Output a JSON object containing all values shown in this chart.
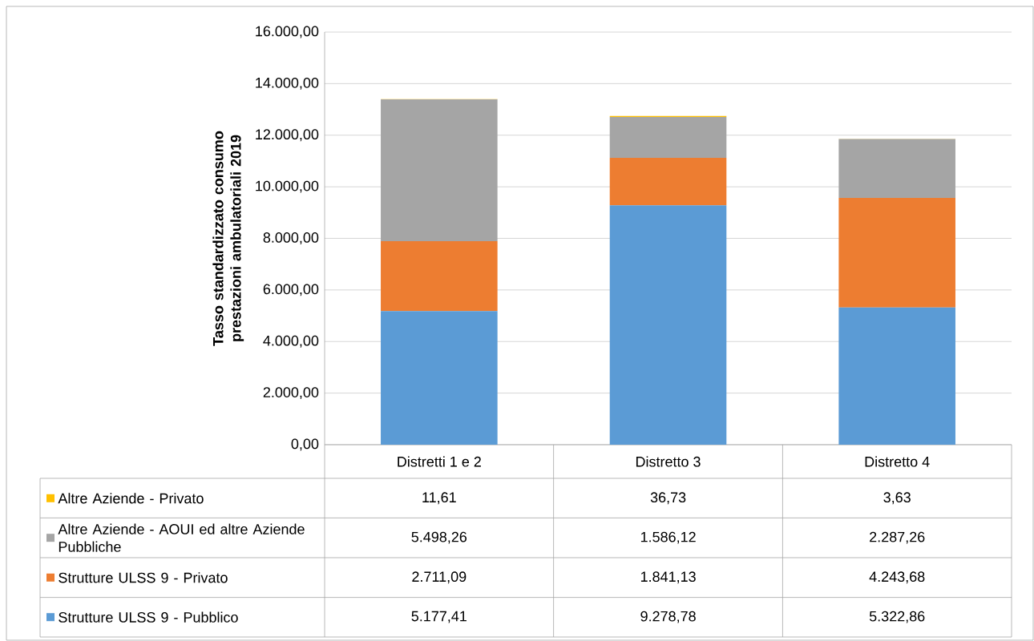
{
  "chart_data": {
    "type": "bar",
    "stacked": true,
    "ylabel": "Tasso standardizzato consumo prestazioni ambulatoriali 2019",
    "categories": [
      "Distretti 1 e 2",
      "Distretto 3",
      "Distretto 4"
    ],
    "series": [
      {
        "name": "Strutture ULSS 9 - Pubblico",
        "color": "#5b9bd5",
        "values": [
          5177.41,
          9278.78,
          5322.86
        ],
        "value_labels": [
          "5.177,41",
          "9.278,78",
          "5.322,86"
        ]
      },
      {
        "name": "Strutture ULSS 9 - Privato",
        "color": "#ed7d31",
        "values": [
          2711.09,
          1841.13,
          4243.68
        ],
        "value_labels": [
          "2.711,09",
          "1.841,13",
          "4.243,68"
        ]
      },
      {
        "name": "Altre Aziende - AOUI ed altre Aziende Pubbliche",
        "color": "#a5a5a5",
        "values": [
          5498.26,
          1586.12,
          2287.26
        ],
        "value_labels": [
          "5.498,26",
          "1.586,12",
          "2.287,26"
        ]
      },
      {
        "name": "Altre Aziende - Privato",
        "color": "#ffc000",
        "values": [
          11.61,
          36.73,
          3.63
        ],
        "value_labels": [
          "11,61",
          "36,73",
          "3,63"
        ]
      }
    ],
    "ylim": [
      0,
      16000
    ],
    "yticks": [
      {
        "value": 0,
        "label": "0,00"
      },
      {
        "value": 2000,
        "label": "2.000,00"
      },
      {
        "value": 4000,
        "label": "4.000,00"
      },
      {
        "value": 6000,
        "label": "6.000,00"
      },
      {
        "value": 8000,
        "label": "8.000,00"
      },
      {
        "value": 10000,
        "label": "10.000,00"
      },
      {
        "value": 12000,
        "label": "12.000,00"
      },
      {
        "value": 14000,
        "label": "14.000,00"
      },
      {
        "value": 16000,
        "label": "16.000,00"
      }
    ],
    "grid": "y",
    "legend": "bottom"
  }
}
